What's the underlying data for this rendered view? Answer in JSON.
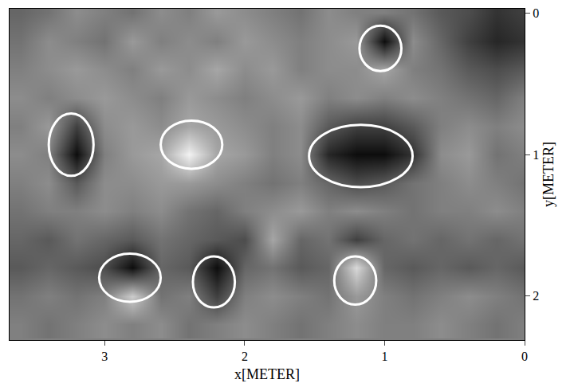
{
  "chart_data": {
    "type": "heatmap",
    "x_label": "x[METER]",
    "y_label": "y[METER]",
    "xlim": [
      3.68,
      0
    ],
    "ylim": [
      2.31,
      -0.03
    ],
    "xticks": [
      3,
      2,
      1,
      0
    ],
    "yticks": [
      0,
      1,
      2
    ],
    "zlim": [
      -1,
      1
    ],
    "x": [
      3.6,
      3.4,
      3.2,
      3.0,
      2.8,
      2.6,
      2.4,
      2.2,
      2.0,
      1.8,
      1.6,
      1.4,
      1.2,
      1.0,
      0.8,
      0.6,
      0.4,
      0.2,
      0.0
    ],
    "y": [
      0.0,
      0.2,
      0.4,
      0.6,
      0.8,
      1.0,
      1.2,
      1.4,
      1.6,
      1.8,
      2.0,
      2.2
    ],
    "z": [
      [
        -0.2,
        -0.1,
        0.1,
        0.0,
        -0.1,
        0.1,
        0.0,
        0.2,
        0.1,
        0.0,
        -0.1,
        0.1,
        0.0,
        0.0,
        -0.1,
        -0.3,
        -0.4,
        -0.6,
        -0.5
      ],
      [
        -0.1,
        0.1,
        0.0,
        -0.1,
        0.2,
        0.0,
        0.1,
        0.0,
        0.2,
        0.1,
        0.0,
        0.1,
        0.2,
        -0.9,
        0.1,
        -0.2,
        -0.5,
        -0.7,
        -0.6
      ],
      [
        0.0,
        0.1,
        0.2,
        0.1,
        0.0,
        0.2,
        0.1,
        0.3,
        0.1,
        0.2,
        0.0,
        0.1,
        0.1,
        0.3,
        0.0,
        -0.1,
        -0.3,
        -0.4,
        -0.3
      ],
      [
        0.1,
        0.0,
        0.1,
        0.2,
        0.1,
        0.0,
        0.2,
        0.1,
        0.0,
        0.1,
        0.2,
        0.0,
        0.1,
        0.0,
        0.1,
        0.0,
        -0.1,
        -0.2,
        0.0
      ],
      [
        0.0,
        0.2,
        -0.5,
        0.1,
        0.2,
        0.1,
        0.3,
        0.2,
        0.1,
        0.0,
        0.1,
        -0.3,
        -0.5,
        -0.5,
        -0.3,
        0.0,
        0.1,
        0.0,
        0.1
      ],
      [
        0.1,
        0.0,
        -0.9,
        0.0,
        0.2,
        0.3,
        0.9,
        0.3,
        0.2,
        0.0,
        0.1,
        -0.7,
        -0.9,
        -0.9,
        -0.6,
        0.1,
        0.2,
        -0.1,
        0.0
      ],
      [
        0.0,
        0.1,
        -0.3,
        0.1,
        0.1,
        0.2,
        0.2,
        0.1,
        0.0,
        -0.1,
        0.0,
        -0.2,
        -0.4,
        -0.3,
        -0.1,
        0.0,
        0.1,
        0.0,
        -0.1
      ],
      [
        -0.1,
        0.0,
        0.0,
        0.1,
        0.0,
        0.1,
        -0.1,
        -0.2,
        0.0,
        0.1,
        0.2,
        0.0,
        0.1,
        0.0,
        -0.1,
        0.0,
        0.0,
        0.1,
        0.0
      ],
      [
        -0.2,
        -0.3,
        -0.1,
        -0.2,
        -0.3,
        -0.1,
        -0.2,
        -0.3,
        -0.4,
        0.3,
        -0.2,
        -0.1,
        -0.5,
        -0.2,
        -0.1,
        -0.2,
        -0.1,
        -0.2,
        -0.1
      ],
      [
        -0.3,
        -0.2,
        -0.3,
        -0.4,
        -0.9,
        -0.2,
        -0.3,
        -0.9,
        -0.2,
        -0.1,
        -0.3,
        -0.2,
        0.7,
        -0.2,
        -0.3,
        -0.2,
        -0.3,
        -0.2,
        -0.3
      ],
      [
        -0.1,
        0.0,
        -0.1,
        0.0,
        0.6,
        -0.1,
        0.0,
        -0.5,
        0.0,
        0.1,
        0.0,
        -0.1,
        0.2,
        0.0,
        -0.1,
        0.0,
        0.1,
        0.0,
        -0.1
      ],
      [
        0.0,
        -0.1,
        0.0,
        0.1,
        0.0,
        0.1,
        -0.1,
        0.0,
        0.1,
        0.0,
        -0.1,
        0.0,
        0.1,
        0.0,
        0.0,
        0.1,
        0.0,
        -0.1,
        0.0
      ]
    ],
    "ellipses": [
      {
        "x0": 0.88,
        "x1": 1.18,
        "y0": 0.09,
        "y1": 0.41
      },
      {
        "x0": 3.08,
        "x1": 3.4,
        "y0": 0.71,
        "y1": 1.15
      },
      {
        "x0": 2.16,
        "x1": 2.6,
        "y0": 0.76,
        "y1": 1.1
      },
      {
        "x0": 0.8,
        "x1": 1.54,
        "y0": 0.79,
        "y1": 1.23
      },
      {
        "x0": 2.6,
        "x1": 3.04,
        "y0": 1.7,
        "y1": 2.04
      },
      {
        "x0": 2.07,
        "x1": 2.37,
        "y0": 1.72,
        "y1": 2.08
      },
      {
        "x0": 1.06,
        "x1": 1.36,
        "y0": 1.72,
        "y1": 2.06
      }
    ]
  }
}
